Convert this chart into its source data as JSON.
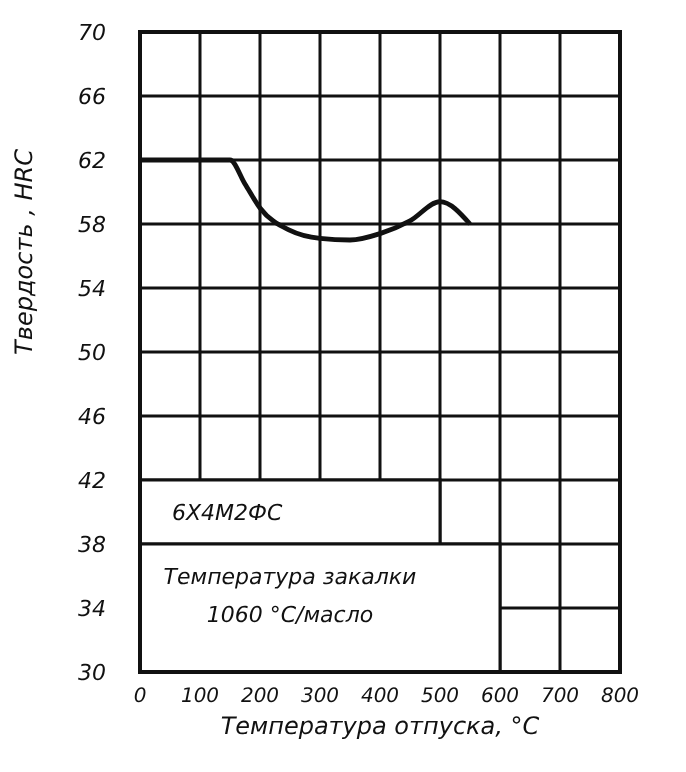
{
  "chart_data": {
    "type": "line",
    "xlabel": "Температура отпуска, °С",
    "ylabel": "Твердость , HRC",
    "x": [
      0,
      150,
      175,
      200,
      250,
      300,
      350,
      400,
      450,
      500,
      550
    ],
    "series": [
      {
        "color": "#111111",
        "values": [
          62,
          62,
          60.5,
          59,
          57.6,
          57.1,
          57,
          57.4,
          58.2,
          59.4,
          58
        ]
      }
    ],
    "xlim": [
      0,
      800
    ],
    "xticks": [
      0,
      100,
      200,
      300,
      400,
      500,
      600,
      700,
      800
    ],
    "ylim": [
      30,
      70
    ],
    "yticks": [
      30,
      34,
      38,
      42,
      46,
      50,
      54,
      58,
      62,
      66,
      70
    ],
    "grid": true,
    "marker": "none",
    "line_style": "solid",
    "annotations": [
      "6Х4М2ФС",
      "Температура закалки 1060 °С/масло"
    ]
  }
}
